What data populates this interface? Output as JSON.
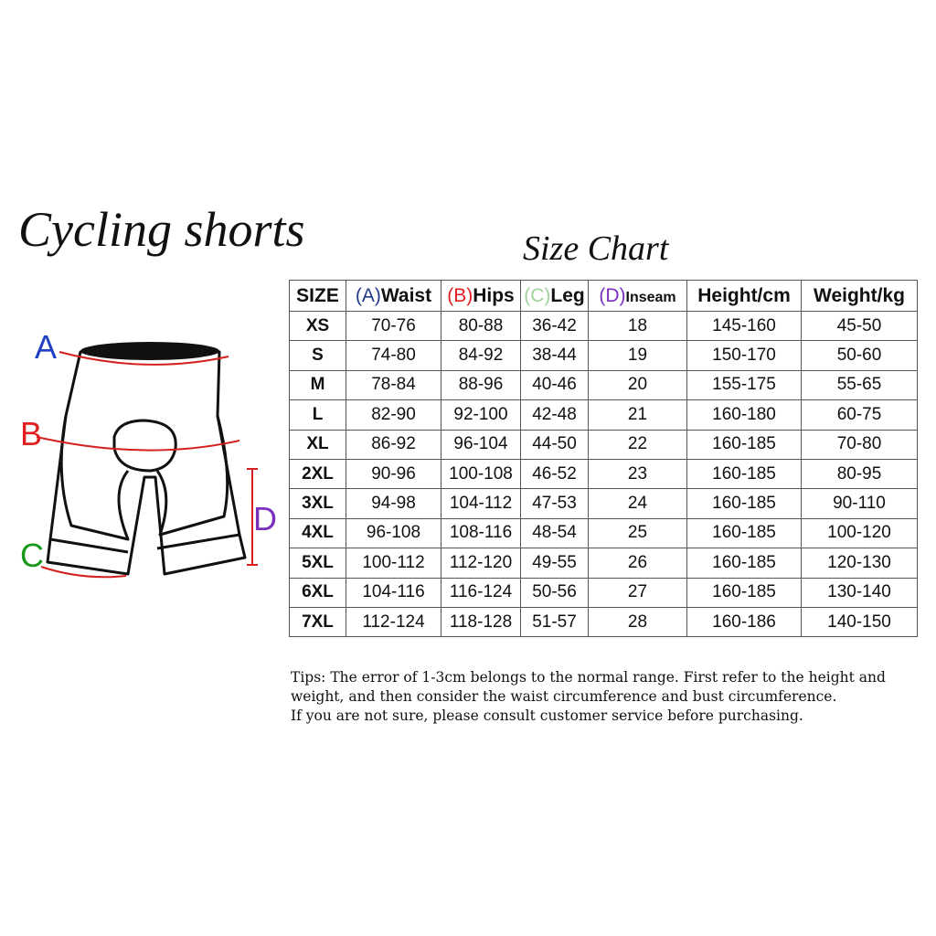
{
  "title": "Cycling shorts",
  "subtitle": "Size Chart",
  "diagram": {
    "labels": [
      {
        "letter": "A",
        "color": "#1f3fc4"
      },
      {
        "letter": "B",
        "color": "#e0201f"
      },
      {
        "letter": "C",
        "color": "#1a9a1a"
      },
      {
        "letter": "D",
        "color": "#7a2fbf"
      }
    ]
  },
  "table": {
    "headers": [
      {
        "prefix": "",
        "label": "SIZE",
        "prefix_color": ""
      },
      {
        "prefix": "(A)",
        "label": "Waist",
        "prefix_color": "#1f3a8a"
      },
      {
        "prefix": "(B)",
        "label": "Hips",
        "prefix_color": "#e0201f"
      },
      {
        "prefix": "(C)",
        "label": "Leg",
        "prefix_color": "#9fd39a"
      },
      {
        "prefix": "(D)",
        "label": "Inseam",
        "prefix_color": "#7a2fbf"
      },
      {
        "prefix": "",
        "label": "Height/cm",
        "prefix_color": ""
      },
      {
        "prefix": "",
        "label": "Weight/kg",
        "prefix_color": ""
      }
    ],
    "rows": [
      [
        "XS",
        "70-76",
        "80-88",
        "36-42",
        "18",
        "145-160",
        "45-50"
      ],
      [
        "S",
        "74-80",
        "84-92",
        "38-44",
        "19",
        "150-170",
        "50-60"
      ],
      [
        "M",
        "78-84",
        "88-96",
        "40-46",
        "20",
        "155-175",
        "55-65"
      ],
      [
        "L",
        "82-90",
        "92-100",
        "42-48",
        "21",
        "160-180",
        "60-75"
      ],
      [
        "XL",
        "86-92",
        "96-104",
        "44-50",
        "22",
        "160-185",
        "70-80"
      ],
      [
        "2XL",
        "90-96",
        "100-108",
        "46-52",
        "23",
        "160-185",
        "80-95"
      ],
      [
        "3XL",
        "94-98",
        "104-112",
        "47-53",
        "24",
        "160-185",
        "90-110"
      ],
      [
        "4XL",
        "96-108",
        "108-116",
        "48-54",
        "25",
        "160-185",
        "100-120"
      ],
      [
        "5XL",
        "100-112",
        "112-120",
        "49-55",
        "26",
        "160-185",
        "120-130"
      ],
      [
        "6XL",
        "104-116",
        "116-124",
        "50-56",
        "27",
        "160-185",
        "130-140"
      ],
      [
        "7XL",
        "112-124",
        "118-128",
        "51-57",
        "28",
        "160-186",
        "140-150"
      ]
    ]
  },
  "tips": [
    "Tips: The error of 1-3cm belongs to the normal range. First refer to the height and",
    "weight, and then consider the waist circumference and bust circumference.",
    "If you are not sure, please consult customer service before purchasing."
  ]
}
